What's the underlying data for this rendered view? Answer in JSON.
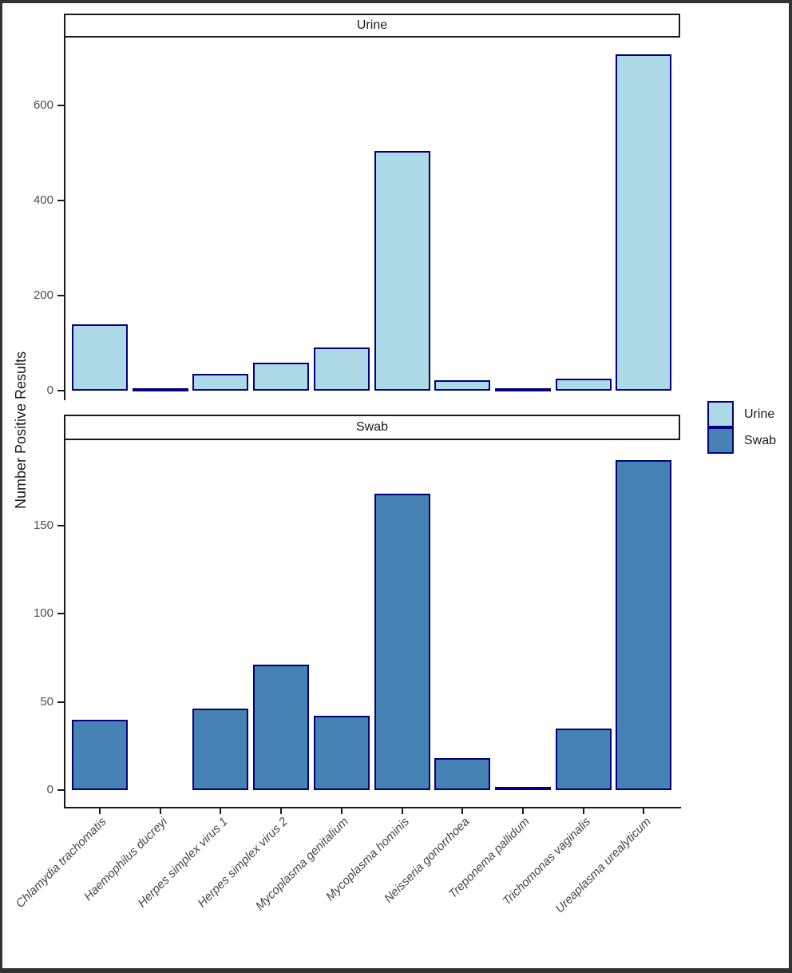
{
  "figure": {
    "ylabel": "Number Positive Results",
    "background": "#ffffff",
    "frame_color": "#333333",
    "legend": {
      "position": "right",
      "items": [
        {
          "label": "Urine",
          "fill": "#ADD8E6"
        },
        {
          "label": "Swab",
          "fill": "#4682B4"
        }
      ],
      "swatch_border": "#000080"
    }
  },
  "chart_data": [
    {
      "type": "bar",
      "facet": "Urine",
      "categories": [
        "Chlamydia trachomatis",
        "Haemophilus ducreyi",
        "Herpes simplex virus 1",
        "Herpes simplex virus 2",
        "Mycoplasma genitalium",
        "Mycoplasma hominis",
        "Neisseria gonorrhoea",
        "Treponema pallidum",
        "Trichomonas vaginalis",
        "Ureaplasma urealyticum"
      ],
      "values": [
        140,
        1,
        36,
        58,
        90,
        504,
        22,
        1,
        25,
        708
      ],
      "xlabel": "",
      "ylabel": "Number Positive Results",
      "ylim": [
        0,
        740
      ],
      "yticks": [
        0,
        200,
        400,
        600
      ],
      "grid": false,
      "fill": "#ADD8E6",
      "stroke": "#000080"
    },
    {
      "type": "bar",
      "facet": "Swab",
      "categories": [
        "Chlamydia trachomatis",
        "Haemophilus ducreyi",
        "Herpes simplex virus 1",
        "Herpes simplex virus 2",
        "Mycoplasma genitalium",
        "Mycoplasma hominis",
        "Neisseria gonorrhoea",
        "Treponema pallidum",
        "Trichomonas vaginalis",
        "Ureaplasma urealyticum"
      ],
      "values": [
        40,
        0,
        46,
        71,
        42,
        168,
        18,
        2,
        35,
        187
      ],
      "xlabel": "",
      "ylabel": "Number Positive Results",
      "ylim": [
        0,
        198
      ],
      "yticks": [
        0,
        50,
        100,
        150
      ],
      "grid": false,
      "fill": "#4682B4",
      "stroke": "#000080"
    }
  ]
}
